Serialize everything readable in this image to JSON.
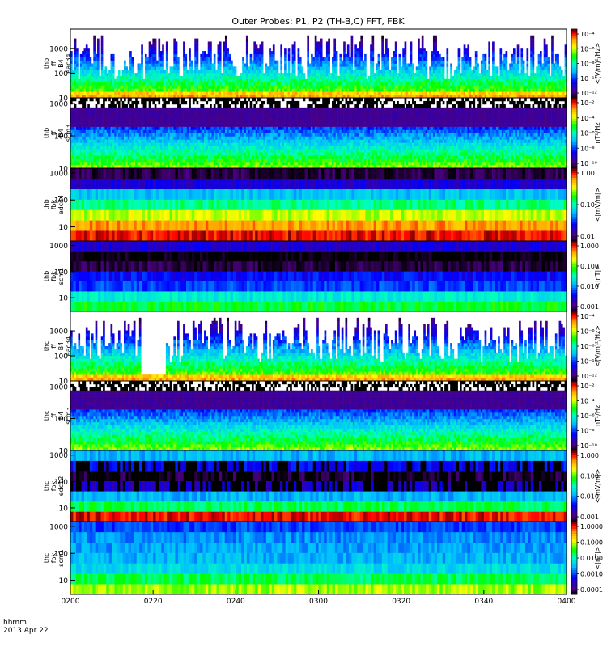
{
  "title": "Outer Probes: P1, P2 (TH-B,C) FFT, FBK",
  "footer": {
    "line1": "hhmm",
    "line2": "2013 Apr 22"
  },
  "time_axis": {
    "ticks": [
      "0200",
      "0220",
      "0240",
      "0300",
      "0320",
      "0340",
      "0400"
    ],
    "range": [
      "02:00",
      "04:00"
    ]
  },
  "chart_data": {
    "type": "heatmap",
    "title": "Outer Probes: P1, P2 (TH-B,C) FFT, FBK",
    "x_ticks": [
      "0200",
      "0220",
      "0240",
      "0300",
      "0320",
      "0340",
      "0400"
    ],
    "panels": [
      {
        "id": "thb-ff-eac34",
        "ylabel": [
          "thb",
          "ff",
          "B4",
          "eac34"
        ],
        "yticks": [
          "10",
          "100",
          "1000"
        ],
        "yrange": [
          10,
          6000
        ],
        "log_y": true,
        "cbar_ticks": [
          "10⁻⁴",
          "10⁻⁶",
          "10⁻⁸",
          "10⁻¹⁰",
          "10⁻¹²"
        ],
        "cbar_label": "<(V/m)²/Hz>",
        "cbar_range": [
          "1e-12",
          "1e-4"
        ],
        "style": "ffE_b"
      },
      {
        "id": "thb-ff-scm3",
        "ylabel": [
          "thb",
          "ff",
          "B4",
          "scm3"
        ],
        "yticks": [
          "10",
          "100",
          "1000"
        ],
        "yrange": [
          10,
          1500
        ],
        "log_y": true,
        "cbar_ticks": [
          "10⁻²",
          "10⁻⁴",
          "10⁻⁶",
          "10⁻⁸",
          "10⁻¹⁰"
        ],
        "cbar_label": "nT²/Hz",
        "cbar_range": [
          "1e-10",
          "1e-2"
        ],
        "style": "ffB_b"
      },
      {
        "id": "thb-fbk-edc34",
        "ylabel": [
          "thb",
          "fbk",
          "edc34"
        ],
        "yticks": [
          "10",
          "100",
          "1000"
        ],
        "yrange": [
          3,
          1500
        ],
        "log_y": true,
        "cbar_ticks": [
          "1.00",
          "0.10",
          "0.01"
        ],
        "cbar_label": "<|mV/m|>",
        "cbar_range": [
          "0.01",
          "1.00"
        ],
        "style": "fbE_b"
      },
      {
        "id": "thb-fbk-scm1",
        "ylabel": [
          "thb",
          "fbk",
          "scm1"
        ],
        "yticks": [
          "10",
          "100",
          "1000"
        ],
        "yrange": [
          3,
          1500
        ],
        "log_y": true,
        "cbar_ticks": [
          "1.000",
          "0.100",
          "0.010",
          "0.001"
        ],
        "cbar_label": "<|nT|>",
        "cbar_range": [
          "0.001",
          "1.000"
        ],
        "style": "fbB_b"
      },
      {
        "id": "thc-ff-eac34",
        "ylabel": [
          "thc",
          "ff",
          "B4",
          "eac34"
        ],
        "yticks": [
          "10",
          "100",
          "1000"
        ],
        "yrange": [
          10,
          6000
        ],
        "log_y": true,
        "cbar_ticks": [
          "10⁻⁴",
          "10⁻⁶",
          "10⁻⁸",
          "10⁻¹⁰",
          "10⁻¹²"
        ],
        "cbar_label": "<(V/m)²/Hz>",
        "cbar_range": [
          "1e-12",
          "1e-4"
        ],
        "style": "ffE_c"
      },
      {
        "id": "thc-ff-scm3",
        "ylabel": [
          "thc",
          "ff",
          "B4",
          "scm3"
        ],
        "yticks": [
          "10",
          "100",
          "1000"
        ],
        "yrange": [
          10,
          1500
        ],
        "log_y": true,
        "cbar_ticks": [
          "10⁻²",
          "10⁻⁴",
          "10⁻⁶",
          "10⁻⁸",
          "10⁻¹⁰"
        ],
        "cbar_label": "nT²/Hz",
        "cbar_range": [
          "1e-10",
          "1e-2"
        ],
        "style": "ffB_c"
      },
      {
        "id": "thc-fbk-edc12",
        "ylabel": [
          "thc",
          "fbk",
          "edc12"
        ],
        "yticks": [
          "10",
          "100",
          "1000"
        ],
        "yrange": [
          3,
          1500
        ],
        "log_y": true,
        "cbar_ticks": [
          "1.000",
          "0.100",
          "0.010",
          "0.001"
        ],
        "cbar_label": "<|mV/m|>",
        "cbar_range": [
          "0.001",
          "1.000"
        ],
        "style": "fbE_c"
      },
      {
        "id": "thc-fbk-scm1",
        "ylabel": [
          "thc",
          "fbk",
          "scm1"
        ],
        "yticks": [
          "10",
          "100",
          "1000"
        ],
        "yrange": [
          3,
          1500
        ],
        "log_y": true,
        "cbar_ticks": [
          "1.0000",
          "0.1000",
          "0.0100",
          "0.0010",
          "0.0001"
        ],
        "cbar_label": "<|nT|>",
        "cbar_range": [
          "0.0001",
          "1.0000"
        ],
        "style": "fbB_c"
      }
    ],
    "colormap": [
      "#ffffff",
      "#000000",
      "#4b0082",
      "#0000ff",
      "#00bfff",
      "#00ffbf",
      "#00ff00",
      "#ffff00",
      "#ffa500",
      "#ff0000",
      "#800000"
    ]
  }
}
